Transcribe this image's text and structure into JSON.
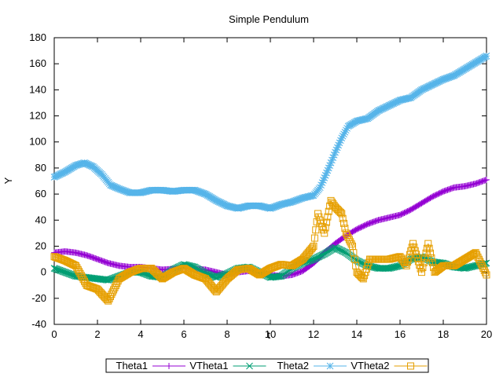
{
  "chart_data": {
    "type": "line",
    "title": "Simple Pendulum",
    "xlabel": "t",
    "ylabel": "Y",
    "xlim": [
      0,
      20
    ],
    "ylim": [
      -40,
      180
    ],
    "xticks": [
      0,
      2,
      4,
      6,
      8,
      10,
      12,
      14,
      16,
      18,
      20
    ],
    "yticks": [
      -40,
      -20,
      0,
      20,
      40,
      60,
      80,
      100,
      120,
      140,
      160,
      180
    ],
    "grid": false,
    "legend_position": "bottom",
    "series": [
      {
        "name": "Theta1",
        "color": "#9400d3",
        "marker": "plus",
        "points": [
          [
            0,
            15
          ],
          [
            0.5,
            16
          ],
          [
            1,
            15
          ],
          [
            1.5,
            13
          ],
          [
            2,
            10
          ],
          [
            2.5,
            7
          ],
          [
            3,
            5
          ],
          [
            3.5,
            4
          ],
          [
            4,
            4
          ],
          [
            5,
            2
          ],
          [
            6,
            3
          ],
          [
            7,
            2
          ],
          [
            7.5,
            0
          ],
          [
            8,
            -2
          ],
          [
            8.5,
            0
          ],
          [
            9,
            1
          ],
          [
            10,
            -2
          ],
          [
            10.5,
            -3
          ],
          [
            11,
            -2
          ],
          [
            11.5,
            1
          ],
          [
            12,
            7
          ],
          [
            12.5,
            15
          ],
          [
            13,
            22
          ],
          [
            13.5,
            28
          ],
          [
            14,
            33
          ],
          [
            14.5,
            37
          ],
          [
            15,
            40
          ],
          [
            15.5,
            42
          ],
          [
            16,
            44
          ],
          [
            16.5,
            48
          ],
          [
            17,
            53
          ],
          [
            17.5,
            58
          ],
          [
            18,
            62
          ],
          [
            18.5,
            65
          ],
          [
            19,
            66
          ],
          [
            19.5,
            68
          ],
          [
            20,
            71
          ]
        ]
      },
      {
        "name": "VTheta1",
        "color": "#009e73",
        "marker": "cross",
        "points": [
          [
            0,
            3
          ],
          [
            0.5,
            0
          ],
          [
            1,
            -3
          ],
          [
            1.5,
            -4
          ],
          [
            2,
            -5
          ],
          [
            2.5,
            -6
          ],
          [
            3,
            -3
          ],
          [
            3.5,
            0
          ],
          [
            4,
            0
          ],
          [
            4.5,
            -3
          ],
          [
            5,
            -4
          ],
          [
            5.5,
            2
          ],
          [
            6,
            6
          ],
          [
            6.5,
            4
          ],
          [
            7,
            -1
          ],
          [
            7.5,
            -4
          ],
          [
            8,
            -1
          ],
          [
            8.5,
            3
          ],
          [
            9,
            4
          ],
          [
            9.5,
            0
          ],
          [
            10,
            -4
          ],
          [
            10.5,
            -3
          ],
          [
            11,
            3
          ],
          [
            11.5,
            7
          ],
          [
            12,
            10
          ],
          [
            12.5,
            14
          ],
          [
            13,
            19
          ],
          [
            13.5,
            15
          ],
          [
            14,
            9
          ],
          [
            14.5,
            5
          ],
          [
            15,
            3
          ],
          [
            15.5,
            3
          ],
          [
            16,
            5
          ],
          [
            16.5,
            10
          ],
          [
            17,
            12
          ],
          [
            17.5,
            8
          ],
          [
            18,
            7
          ],
          [
            18.5,
            4
          ],
          [
            19,
            3
          ],
          [
            19.5,
            5
          ],
          [
            20,
            7
          ]
        ]
      },
      {
        "name": "Theta2",
        "color": "#56b4e9",
        "marker": "star",
        "points": [
          [
            0,
            73
          ],
          [
            0.5,
            77
          ],
          [
            1,
            82
          ],
          [
            1.4,
            84
          ],
          [
            1.8,
            81
          ],
          [
            2.2,
            75
          ],
          [
            2.6,
            67
          ],
          [
            3,
            64
          ],
          [
            3.5,
            61
          ],
          [
            4,
            61
          ],
          [
            4.5,
            63
          ],
          [
            5,
            63
          ],
          [
            5.5,
            62
          ],
          [
            6,
            63
          ],
          [
            6.5,
            63
          ],
          [
            7,
            60
          ],
          [
            7.5,
            55
          ],
          [
            8,
            51
          ],
          [
            8.5,
            49
          ],
          [
            9,
            51
          ],
          [
            9.5,
            51
          ],
          [
            10,
            49
          ],
          [
            10.5,
            52
          ],
          [
            11,
            54
          ],
          [
            11.5,
            57
          ],
          [
            12,
            59
          ],
          [
            12.3,
            65
          ],
          [
            12.7,
            80
          ],
          [
            13,
            92
          ],
          [
            13.3,
            103
          ],
          [
            13.6,
            112
          ],
          [
            14,
            116
          ],
          [
            14.5,
            118
          ],
          [
            15,
            124
          ],
          [
            15.5,
            128
          ],
          [
            16,
            132
          ],
          [
            16.5,
            134
          ],
          [
            17,
            140
          ],
          [
            17.5,
            144
          ],
          [
            18,
            148
          ],
          [
            18.5,
            151
          ],
          [
            19,
            156
          ],
          [
            19.5,
            161
          ],
          [
            20,
            166
          ]
        ]
      },
      {
        "name": "VTheta2",
        "color": "#e69f00",
        "marker": "box",
        "points": [
          [
            0,
            12
          ],
          [
            0.5,
            9
          ],
          [
            1,
            5
          ],
          [
            1.5,
            -10
          ],
          [
            2,
            -13
          ],
          [
            2.5,
            -22
          ],
          [
            3,
            -5
          ],
          [
            3.5,
            0
          ],
          [
            4,
            3
          ],
          [
            4.5,
            3
          ],
          [
            5,
            -5
          ],
          [
            5.5,
            0
          ],
          [
            6,
            3
          ],
          [
            6.5,
            -2
          ],
          [
            7,
            -5
          ],
          [
            7.5,
            -15
          ],
          [
            8,
            -5
          ],
          [
            8.5,
            2
          ],
          [
            9,
            3
          ],
          [
            9.5,
            -2
          ],
          [
            10,
            3
          ],
          [
            10.5,
            6
          ],
          [
            11,
            5
          ],
          [
            11.5,
            10
          ],
          [
            12,
            20
          ],
          [
            12.2,
            45
          ],
          [
            12.5,
            30
          ],
          [
            12.8,
            55
          ],
          [
            13,
            50
          ],
          [
            13.3,
            45
          ],
          [
            13.5,
            30
          ],
          [
            13.8,
            20
          ],
          [
            14,
            0
          ],
          [
            14.3,
            -5
          ],
          [
            14.6,
            10
          ],
          [
            15,
            10
          ],
          [
            15.5,
            10
          ],
          [
            16,
            12
          ],
          [
            16.3,
            5
          ],
          [
            16.6,
            22
          ],
          [
            17,
            0
          ],
          [
            17.3,
            22
          ],
          [
            17.6,
            0
          ],
          [
            18,
            5
          ],
          [
            18.5,
            5
          ],
          [
            19,
            10
          ],
          [
            19.5,
            15
          ],
          [
            20,
            -2
          ]
        ]
      }
    ]
  }
}
